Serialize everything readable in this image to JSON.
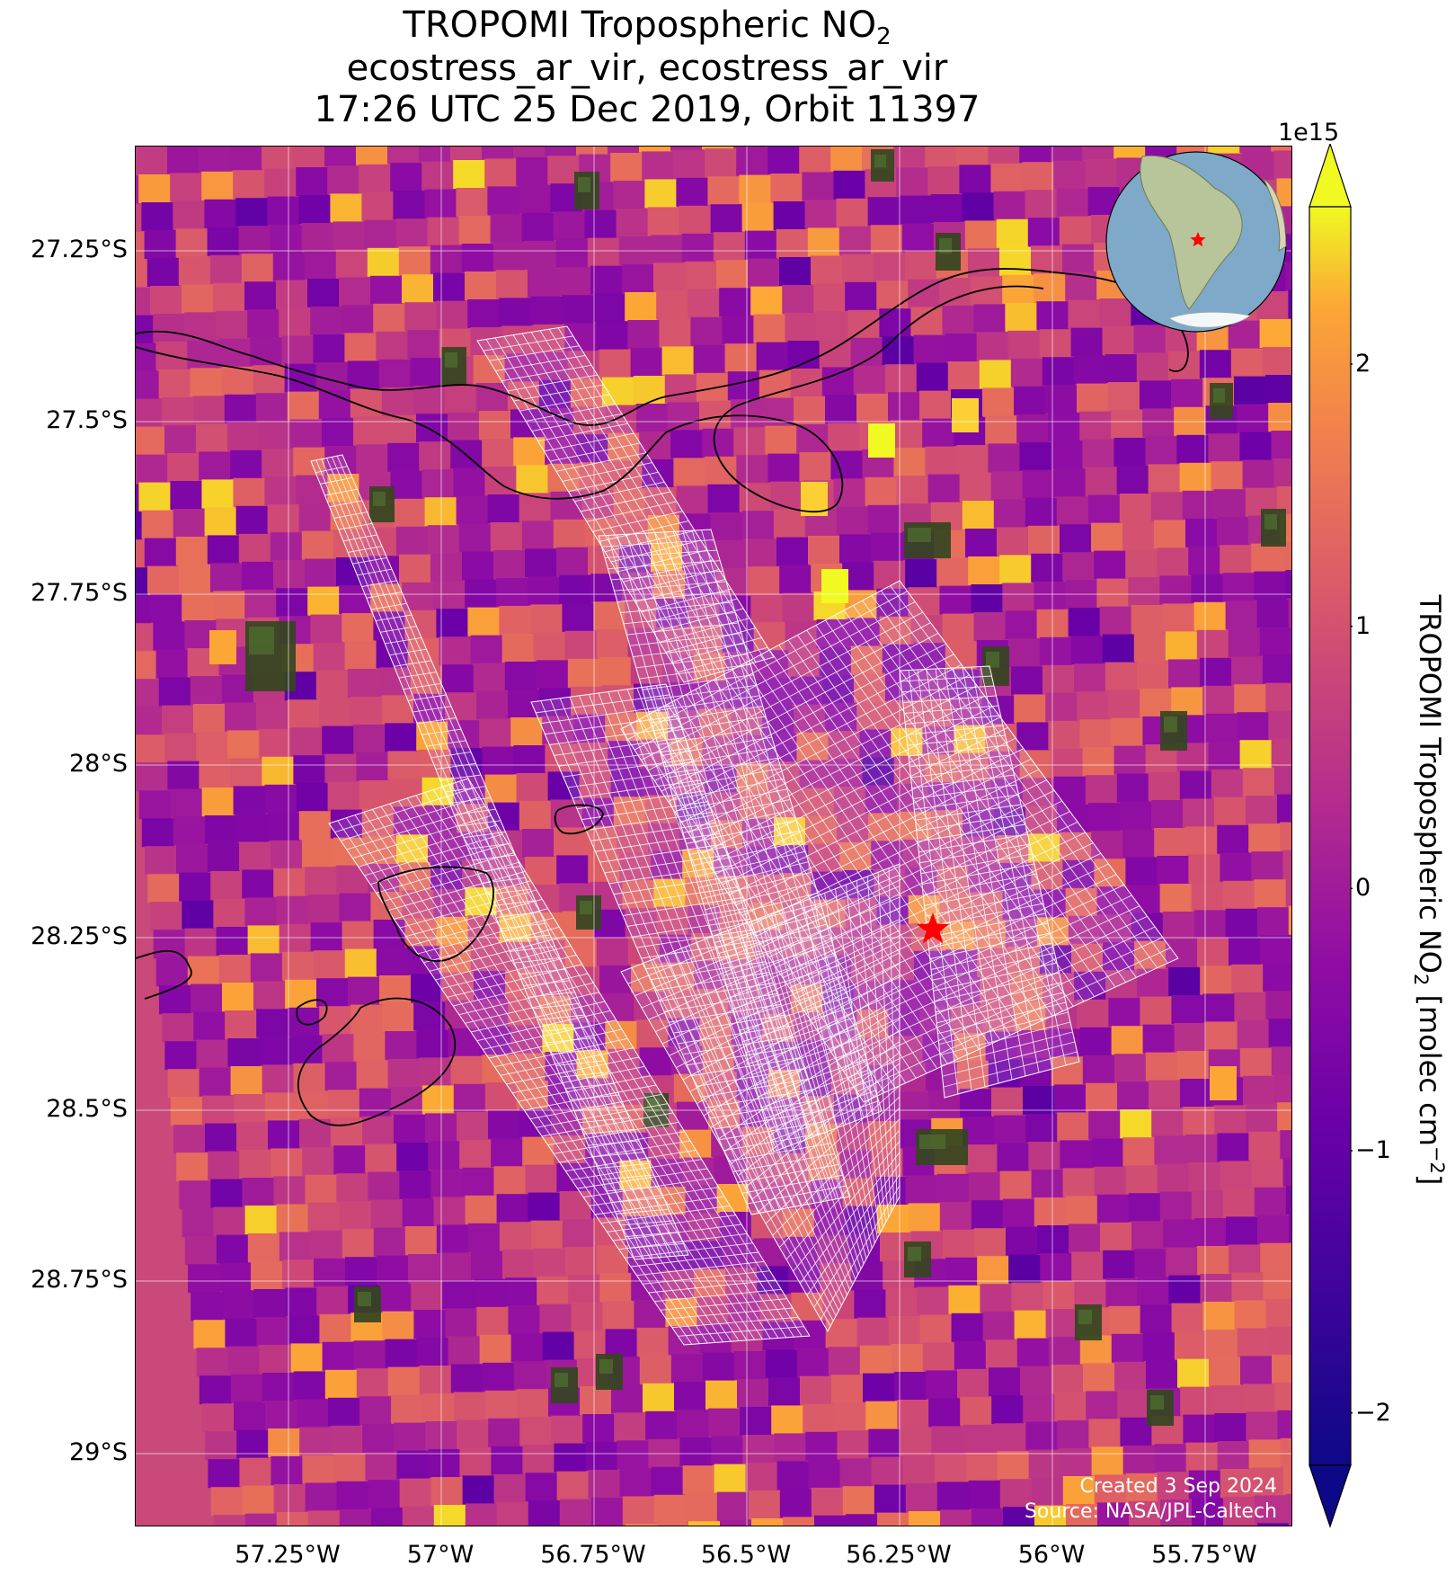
{
  "title": {
    "line1_main": "TROPOMI Tropospheric NO",
    "line1_sub": "2",
    "line2": "ecostress_ar_vir, ecostress_ar_vir",
    "line3": "17:26 UTC 25 Dec 2019, Orbit 11397"
  },
  "map": {
    "lat_labels": [
      "27.25°S",
      "27.5°S",
      "27.75°S",
      "28°S",
      "28.25°S",
      "28.5°S",
      "28.75°S",
      "29°S"
    ],
    "lon_labels": [
      "57.25°W",
      "57°W",
      "56.75°W",
      "56.5°W",
      "56.25°W",
      "56°W",
      "55.75°W"
    ],
    "marker": "red-star",
    "inset": "globe-south-america",
    "credit_created": "Created 3 Sep 2024",
    "credit_source": "Source: NASA/JPL-Caltech"
  },
  "colorbar": {
    "exponent": "1e15",
    "ticks": [
      "2",
      "1",
      "0",
      "−1",
      "−2"
    ],
    "label_main": "TROPOMI Tropospheric NO",
    "label_sub": "2",
    "label_unit_pre": " [molec cm",
    "label_sup": "−2",
    "label_unit_post": "]",
    "colormap": "plasma",
    "range": [
      -2.2,
      2.6
    ]
  },
  "colors": {
    "stops": [
      "#0d0887",
      "#6a00a8",
      "#b12a90",
      "#e16462",
      "#fca636",
      "#f0f921"
    ],
    "grid_overlay": "#ffffff",
    "river_lines": "#000000",
    "marker": "#ff0000"
  }
}
